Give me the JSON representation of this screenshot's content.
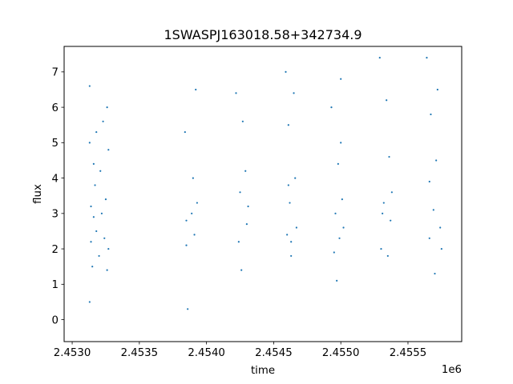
{
  "chart_data": {
    "type": "scatter",
    "title": "1SWASPJ163018.58+342734.9",
    "xlabel": "time",
    "ylabel": "flux",
    "x_offset_label": "1e6",
    "xlim": [
      2.45294,
      2.4559
    ],
    "ylim": [
      -0.62,
      7.72
    ],
    "x_ticks": [
      {
        "value": 2.453,
        "label": "2.4530"
      },
      {
        "value": 2.4535,
        "label": "2.4535"
      },
      {
        "value": 2.454,
        "label": "2.4540"
      },
      {
        "value": 2.4545,
        "label": "2.4545"
      },
      {
        "value": 2.455,
        "label": "2.4550"
      },
      {
        "value": 2.4555,
        "label": "2.4555"
      }
    ],
    "y_ticks": [
      {
        "value": 0,
        "label": "0"
      },
      {
        "value": 1,
        "label": "1"
      },
      {
        "value": 2,
        "label": "2"
      },
      {
        "value": 3,
        "label": "3"
      },
      {
        "value": 4,
        "label": "4"
      },
      {
        "value": 5,
        "label": "5"
      },
      {
        "value": 6,
        "label": "6"
      },
      {
        "value": 7,
        "label": "7"
      }
    ],
    "grid": false,
    "point_color": "#1f77b4",
    "series": [
      {
        "x": [
          2.45313,
          2.45313,
          2.45314,
          2.45314,
          2.45315,
          2.45316,
          2.45316,
          2.45317,
          2.45318,
          2.45318,
          2.4532,
          2.45321,
          2.45322,
          2.45323,
          2.45324,
          2.45325,
          2.45326,
          2.45327,
          2.45327,
          2.45326,
          2.45313,
          2.45384,
          2.45385,
          2.45386,
          2.45389,
          2.4539,
          2.45391,
          2.45392,
          2.45393,
          2.45385,
          2.45422,
          2.45424,
          2.45425,
          2.45427,
          2.45429,
          2.4543,
          2.45431,
          2.45426,
          2.45459,
          2.4546,
          2.45461,
          2.45462,
          2.45463,
          2.45465,
          2.45466,
          2.45467,
          2.45461,
          2.45463,
          2.45493,
          2.45495,
          2.45496,
          2.45498,
          2.45499,
          2.455,
          2.45501,
          2.45502,
          2.45497,
          2.455,
          2.45529,
          2.4553,
          2.45532,
          2.45534,
          2.45535,
          2.45536,
          2.45537,
          2.45538,
          2.45531,
          2.45564,
          2.45566,
          2.45567,
          2.45569,
          2.4557,
          2.45571,
          2.45572,
          2.45574,
          2.45575,
          2.45566
        ],
        "y": [
          6.6,
          5.0,
          3.2,
          2.2,
          1.5,
          4.4,
          2.9,
          3.8,
          5.3,
          2.5,
          1.8,
          4.2,
          3.0,
          5.6,
          2.3,
          3.4,
          6.0,
          4.8,
          2.0,
          1.4,
          0.5,
          5.3,
          2.1,
          0.3,
          3.0,
          4.0,
          2.4,
          6.5,
          3.3,
          2.8,
          6.4,
          2.2,
          3.6,
          5.6,
          4.2,
          2.7,
          3.2,
          1.4,
          7.0,
          2.4,
          5.5,
          3.3,
          1.8,
          6.4,
          4.0,
          2.6,
          3.8,
          2.2,
          6.0,
          1.9,
          3.0,
          4.4,
          2.3,
          6.8,
          3.4,
          2.6,
          1.1,
          5.0,
          7.4,
          2.0,
          3.3,
          6.2,
          1.8,
          4.6,
          2.8,
          3.6,
          3.0,
          7.4,
          2.3,
          5.8,
          3.1,
          1.3,
          4.5,
          6.5,
          2.6,
          2.0,
          3.9
        ]
      }
    ]
  }
}
